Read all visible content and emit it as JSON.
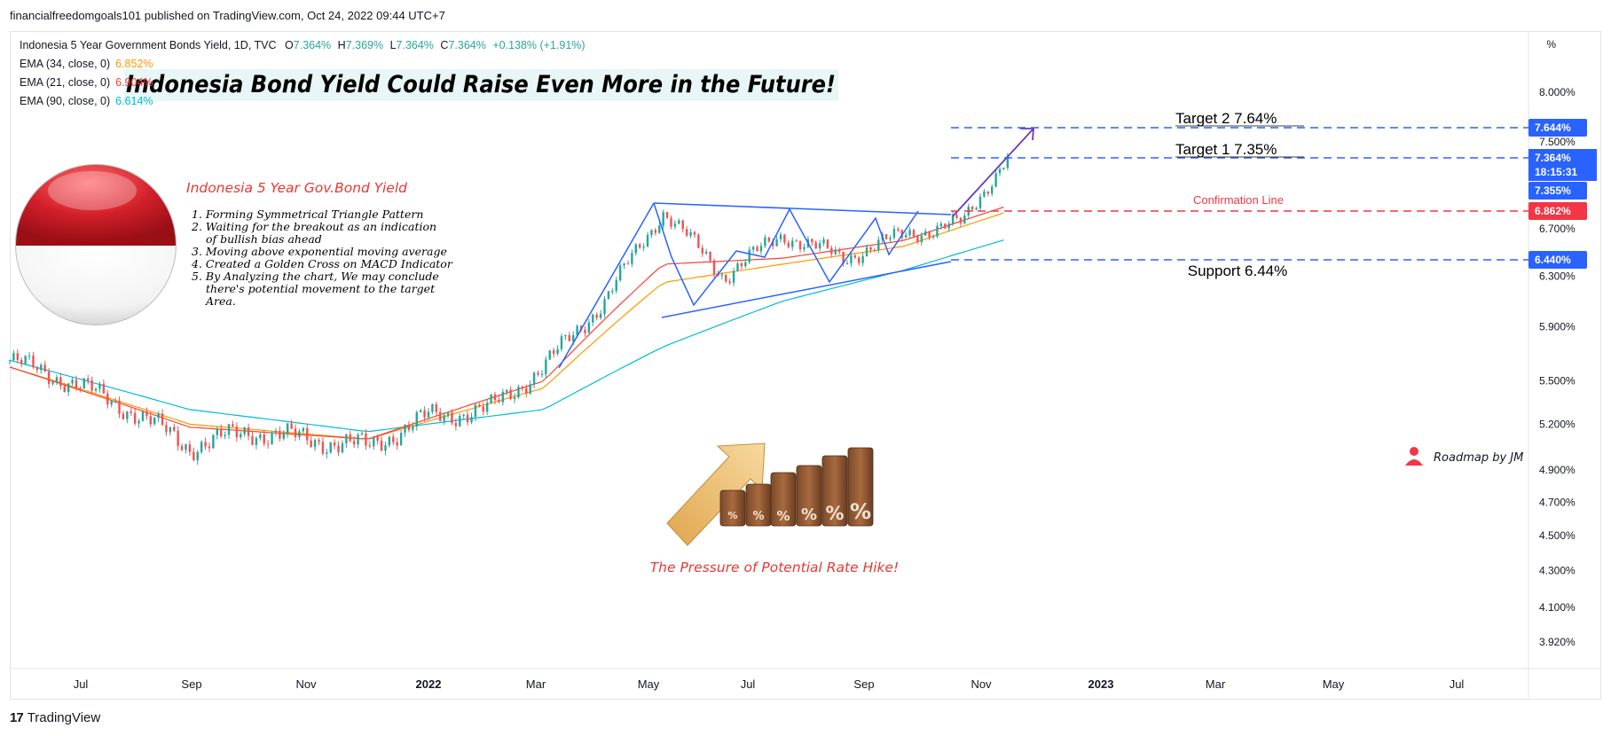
{
  "header": {
    "publish_line": "financialfreedomgoals101 published on TradingView.com, Oct 24, 2022 09:44 UTC+7"
  },
  "legend": {
    "symbol": "Indonesia 5 Year Government Bonds Yield, 1D, TVC",
    "o_label": "O",
    "o_val": "7.364%",
    "h_label": "H",
    "h_val": "7.369%",
    "l_label": "L",
    "l_val": "7.364%",
    "c_label": "C",
    "c_val": "7.364%",
    "change": "+0.138% (+1.91%)",
    "ema34_label": "EMA (34, close, 0)",
    "ema34_val": "6.852%",
    "ema21_label": "EMA (21, close, 0)",
    "ema21_val": "6.904%",
    "ema90_label": "EMA (90, close, 0)",
    "ema90_val": "6.614%"
  },
  "annotations": {
    "main_title": "Indonesia Bond Yield Could Raise Even More in the Future!",
    "panel_title": "Indonesia 5 Year Gov.Bond Yield",
    "bullets": [
      "1. Forming Symmetrical Triangle Pattern",
      "2. Waiting for the breakout as an indication",
      "of bullish bias ahead",
      "3. Moving above exponential moving average",
      "4. Created a Golden Cross on MACD Indicator",
      "5. By Analyzing the chart, We may conclude",
      "there's potential movement to the target",
      "Area."
    ],
    "target2": "Target 2   7.64%",
    "target1": "Target 1   7.35%",
    "confirmation": "Confirmation Line",
    "support": "Support 6.44%",
    "rate_hike": "The Pressure of Potential Rate Hike!",
    "roadmap": "Roadmap by JM",
    "percent_glyph": "%"
  },
  "price_axis": {
    "unit_label": "%",
    "labels": [
      "8.000%",
      "7.500%",
      "6.700%",
      "6.300%",
      "5.900%",
      "5.500%",
      "5.200%",
      "4.900%",
      "4.700%",
      "4.500%",
      "4.300%",
      "4.100%",
      "3.920%"
    ],
    "badges": [
      {
        "text": "7.644%",
        "color": "#2962ff"
      },
      {
        "text": "7.364%",
        "color": "#2962ff"
      },
      {
        "text": "18:15:31",
        "color": "#2962ff"
      },
      {
        "text": "7.355%",
        "color": "#2962ff"
      },
      {
        "text": "6.862%",
        "color": "#f23645"
      },
      {
        "text": "6.440%",
        "color": "#2962ff"
      }
    ]
  },
  "time_axis": {
    "labels": [
      "Jul",
      "Sep",
      "Nov",
      "2022",
      "Mar",
      "May",
      "Jul",
      "Sep",
      "Nov",
      "2023",
      "Mar",
      "May",
      "Jul"
    ]
  },
  "footer": {
    "brand": "TradingView",
    "logo": "17"
  },
  "colors": {
    "up": "#26a69a",
    "down": "#ef5350",
    "ema34": "#ff9800",
    "ema21": "#f44336",
    "ema90": "#00bcd4",
    "pattern": "#2962ff",
    "arrow": "#673ab7",
    "confirm": "#f23645"
  },
  "chart_data": {
    "type": "line",
    "title": "Indonesia 5 Year Government Bonds Yield, 1D, TVC",
    "x_range": [
      "2021-06",
      "2023-08"
    ],
    "ylim": [
      3.9,
      8.1
    ],
    "y_scale": "log",
    "series": [
      {
        "name": "Indonesia 5 Year Government Bonds Yield",
        "x": [
          "2021-06-01",
          "2021-07-01",
          "2021-08-01",
          "2021-09-01",
          "2021-10-01",
          "2021-11-01",
          "2021-12-01",
          "2022-01-01",
          "2022-02-01",
          "2022-03-01",
          "2022-04-01",
          "2022-05-01",
          "2022-06-01",
          "2022-07-01",
          "2022-08-01",
          "2022-09-01",
          "2022-10-01",
          "2022-10-24"
        ],
        "values": [
          5.65,
          5.5,
          5.3,
          5.05,
          5.15,
          5.1,
          5.05,
          5.25,
          5.3,
          5.6,
          6.1,
          6.85,
          6.3,
          6.65,
          6.45,
          6.65,
          6.75,
          7.364
        ]
      },
      {
        "name": "EMA (34, close, 0)",
        "x": [
          "2021-06-01",
          "2021-09-01",
          "2021-12-01",
          "2022-03-01",
          "2022-05-01",
          "2022-07-01",
          "2022-09-01",
          "2022-10-24"
        ],
        "values": [
          5.6,
          5.2,
          5.1,
          5.45,
          6.25,
          6.4,
          6.55,
          6.852
        ]
      },
      {
        "name": "EMA (21, close, 0)",
        "x": [
          "2021-06-01",
          "2021-09-01",
          "2021-12-01",
          "2022-03-01",
          "2022-05-01",
          "2022-07-01",
          "2022-09-01",
          "2022-10-24"
        ],
        "values": [
          5.6,
          5.18,
          5.1,
          5.5,
          6.4,
          6.45,
          6.6,
          6.904
        ]
      },
      {
        "name": "EMA (90, close, 0)",
        "x": [
          "2021-06-01",
          "2021-09-01",
          "2021-12-01",
          "2022-03-01",
          "2022-05-01",
          "2022-07-01",
          "2022-09-01",
          "2022-10-24"
        ],
        "values": [
          5.65,
          5.3,
          5.15,
          5.3,
          5.75,
          6.1,
          6.35,
          6.614
        ]
      }
    ],
    "levels": [
      {
        "value": 7.644,
        "style": "dashed"
      },
      {
        "value": 7.364,
        "style": "dashed"
      },
      {
        "value": 6.862,
        "style": "dashed"
      },
      {
        "value": 6.44,
        "style": "dashed"
      }
    ],
    "grid": false
  }
}
